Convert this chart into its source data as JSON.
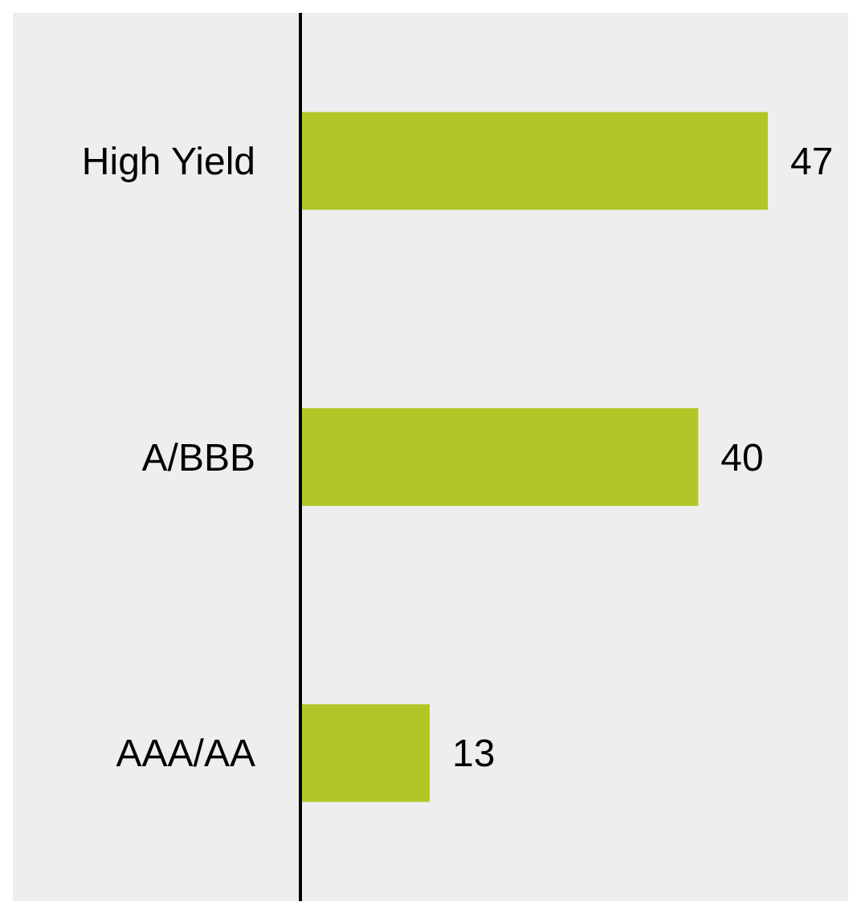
{
  "chart_data": {
    "type": "bar",
    "orientation": "horizontal",
    "categories": [
      "High Yield",
      "A/BBB",
      "AAA/AA"
    ],
    "values": [
      47,
      40,
      13
    ],
    "color": "#b2c628",
    "data_labels": true
  }
}
